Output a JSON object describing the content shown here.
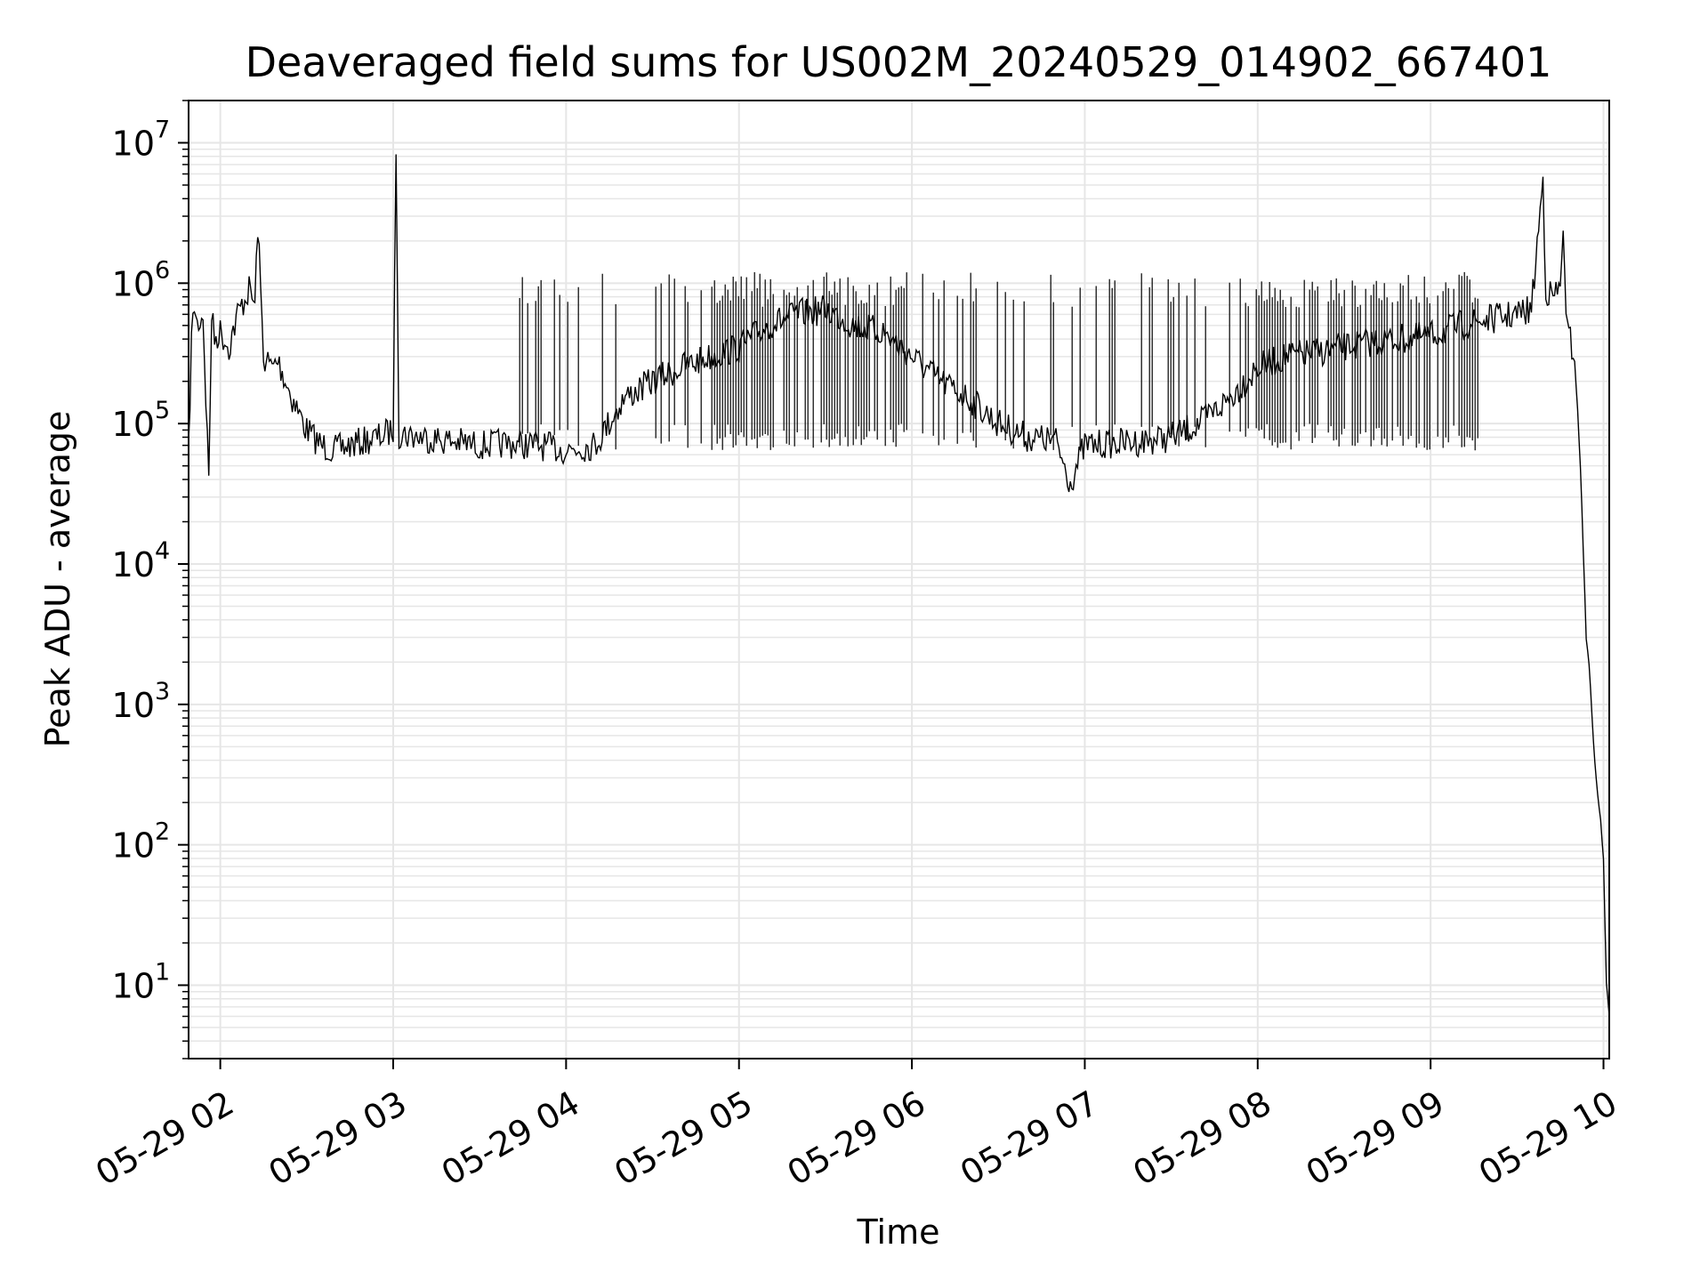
{
  "chart_data": {
    "type": "line",
    "title": "Deaveraged field sums for US002M_20240529_014902_667401",
    "xlabel": "Time",
    "ylabel": "Peak ADU - average",
    "xscale": "time",
    "yscale": "log",
    "xlim": [
      "2024-05-29 01:49",
      "2024-05-29 10:02"
    ],
    "ylim": [
      3,
      20000000
    ],
    "grid": true,
    "line_color": "#000000",
    "grid_color": "#e6e6e6",
    "x_ticks": [
      {
        "value": "2024-05-29 02:00",
        "label": "05-29 02"
      },
      {
        "value": "2024-05-29 03:00",
        "label": "05-29 03"
      },
      {
        "value": "2024-05-29 04:00",
        "label": "05-29 04"
      },
      {
        "value": "2024-05-29 05:00",
        "label": "05-29 05"
      },
      {
        "value": "2024-05-29 06:00",
        "label": "05-29 06"
      },
      {
        "value": "2024-05-29 07:00",
        "label": "05-29 07"
      },
      {
        "value": "2024-05-29 08:00",
        "label": "05-29 08"
      },
      {
        "value": "2024-05-29 09:00",
        "label": "05-29 09"
      },
      {
        "value": "2024-05-29 10:00",
        "label": "05-29 10"
      }
    ],
    "y_ticks": [
      {
        "value": 10,
        "base": "10",
        "exp": "1"
      },
      {
        "value": 100,
        "base": "10",
        "exp": "2"
      },
      {
        "value": 1000,
        "base": "10",
        "exp": "3"
      },
      {
        "value": 10000,
        "base": "10",
        "exp": "4"
      },
      {
        "value": 100000,
        "base": "10",
        "exp": "5"
      },
      {
        "value": 1000000,
        "base": "10",
        "exp": "6"
      },
      {
        "value": 10000000,
        "base": "10",
        "exp": "7"
      }
    ],
    "series": [
      {
        "x": [
          "2024-05-29 01:49",
          "2024-05-29 01:50",
          "2024-05-29 01:51",
          "2024-05-29 01:52",
          "2024-05-29 01:54",
          "2024-05-29 01:56",
          "2024-05-29 01:57",
          "2024-05-29 01:58",
          "2024-05-29 02:00",
          "2024-05-29 02:03",
          "2024-05-29 02:06",
          "2024-05-29 02:10",
          "2024-05-29 02:12",
          "2024-05-29 02:13",
          "2024-05-29 02:15",
          "2024-05-29 02:18",
          "2024-05-29 02:20",
          "2024-05-29 02:25",
          "2024-05-29 02:30",
          "2024-05-29 02:35",
          "2024-05-29 02:40",
          "2024-05-29 02:45",
          "2024-05-29 02:50",
          "2024-05-29 02:55",
          "2024-05-29 03:00",
          "2024-05-29 03:01",
          "2024-05-29 03:02",
          "2024-05-29 03:10",
          "2024-05-29 03:20",
          "2024-05-29 03:30",
          "2024-05-29 03:40",
          "2024-05-29 03:50",
          "2024-05-29 04:00",
          "2024-05-29 04:10",
          "2024-05-29 04:20",
          "2024-05-29 04:30",
          "2024-05-29 04:40",
          "2024-05-29 04:50",
          "2024-05-29 05:00",
          "2024-05-29 05:10",
          "2024-05-29 05:20",
          "2024-05-29 05:30",
          "2024-05-29 05:40",
          "2024-05-29 05:50",
          "2024-05-29 06:00",
          "2024-05-29 06:10",
          "2024-05-29 06:20",
          "2024-05-29 06:30",
          "2024-05-29 06:40",
          "2024-05-29 06:50",
          "2024-05-29 06:55",
          "2024-05-29 07:00",
          "2024-05-29 07:10",
          "2024-05-29 07:20",
          "2024-05-29 07:30",
          "2024-05-29 07:40",
          "2024-05-29 07:50",
          "2024-05-29 08:00",
          "2024-05-29 08:10",
          "2024-05-29 08:20",
          "2024-05-29 08:30",
          "2024-05-29 08:40",
          "2024-05-29 08:50",
          "2024-05-29 09:00",
          "2024-05-29 09:10",
          "2024-05-29 09:20",
          "2024-05-29 09:30",
          "2024-05-29 09:35",
          "2024-05-29 09:39",
          "2024-05-29 09:40",
          "2024-05-29 09:42",
          "2024-05-29 09:45",
          "2024-05-29 09:46",
          "2024-05-29 09:47",
          "2024-05-29 09:50",
          "2024-05-29 09:52",
          "2024-05-29 09:54",
          "2024-05-29 09:55",
          "2024-05-29 09:56",
          "2024-05-29 09:57",
          "2024-05-29 09:58",
          "2024-05-29 09:59",
          "2024-05-29 10:00",
          "2024-05-29 10:01",
          "2024-05-29 10:02"
        ],
        "values": [
          60000,
          400000,
          700000,
          500000,
          600000,
          40000,
          600000,
          400000,
          450000,
          350000,
          600000,
          900000,
          700000,
          2600000,
          300000,
          250000,
          280000,
          150000,
          90000,
          70000,
          65000,
          70000,
          75000,
          80000,
          90000,
          10000000,
          85000,
          80000,
          75000,
          70000,
          72000,
          70000,
          65000,
          70000,
          150000,
          200000,
          250000,
          300000,
          350000,
          500000,
          600000,
          650000,
          500000,
          450000,
          300000,
          200000,
          150000,
          100000,
          80000,
          75000,
          38000,
          70000,
          72000,
          75000,
          80000,
          100000,
          150000,
          250000,
          300000,
          320000,
          350000,
          380000,
          400000,
          420000,
          500000,
          550000,
          600000,
          650000,
          5500000,
          900000,
          800000,
          900000,
          2800000,
          500000,
          300000,
          50000,
          3000,
          2000,
          800,
          400,
          220,
          150,
          80,
          10,
          6
        ],
        "spikes": {
          "between": [
            "2024-05-29 03:30",
            "2024-05-29 09:20"
          ],
          "peak_y": 1200000,
          "dense_ranges": [
            [
              "2024-05-29 04:50",
              "2024-05-29 06:00"
            ],
            [
              "2024-05-29 07:55",
              "2024-05-29 09:35"
            ]
          ]
        }
      }
    ]
  }
}
